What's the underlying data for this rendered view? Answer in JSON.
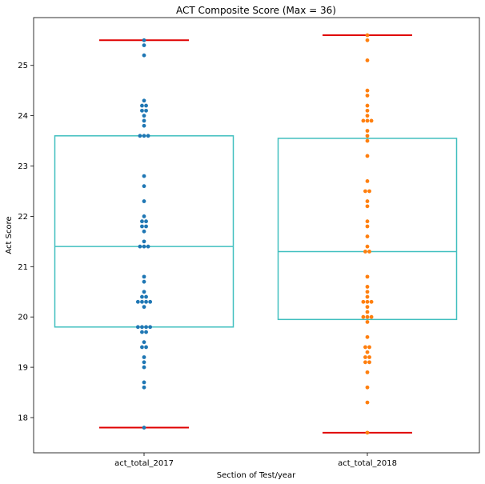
{
  "chart_data": {
    "type": "box-swarm",
    "title": "ACT Composite Score (Max = 36)",
    "xlabel": "Section of Test/year",
    "ylabel": "Act Score",
    "categories": [
      "act_total_2017",
      "act_total_2018"
    ],
    "ylim": [
      17.3,
      25.95
    ],
    "yticks": [
      18,
      19,
      20,
      21,
      22,
      23,
      24,
      25
    ],
    "grid": false,
    "colors": {
      "box": "#40bfbf",
      "whisker_cap": "#e00000",
      "act_total_2017": "#1f77b4",
      "act_total_2018": "#ff7f0e"
    },
    "boxes": [
      {
        "category": "act_total_2017",
        "whisker_low": 17.8,
        "q1": 19.8,
        "median": 21.4,
        "q3": 23.6,
        "whisker_high": 25.5
      },
      {
        "category": "act_total_2018",
        "whisker_low": 17.7,
        "q1": 19.95,
        "median": 21.3,
        "q3": 23.55,
        "whisker_high": 25.6
      }
    ],
    "series": [
      {
        "category": "act_total_2017",
        "values": [
          17.8,
          18.6,
          18.7,
          19.0,
          19.1,
          19.2,
          19.4,
          19.4,
          19.5,
          19.7,
          19.7,
          19.8,
          19.8,
          19.8,
          19.8,
          20.2,
          20.3,
          20.3,
          20.3,
          20.3,
          20.4,
          20.4,
          20.5,
          20.7,
          20.8,
          21.4,
          21.4,
          21.4,
          21.5,
          21.7,
          21.8,
          21.8,
          21.9,
          21.9,
          22.0,
          22.3,
          22.6,
          22.8,
          23.6,
          23.6,
          23.6,
          23.8,
          23.9,
          24.0,
          24.1,
          24.1,
          24.2,
          24.2,
          24.3,
          25.2,
          25.4,
          25.5
        ]
      },
      {
        "category": "act_total_2018",
        "values": [
          17.7,
          18.3,
          18.6,
          18.9,
          19.1,
          19.1,
          19.2,
          19.2,
          19.3,
          19.4,
          19.4,
          19.6,
          19.9,
          20.0,
          20.0,
          20.0,
          20.1,
          20.2,
          20.3,
          20.3,
          20.3,
          20.4,
          20.5,
          20.6,
          20.8,
          21.3,
          21.3,
          21.4,
          21.6,
          21.8,
          21.9,
          22.2,
          22.3,
          22.5,
          22.5,
          22.7,
          23.2,
          23.5,
          23.6,
          23.7,
          23.9,
          23.9,
          23.9,
          24.0,
          24.1,
          24.2,
          24.4,
          24.5,
          25.1,
          25.5,
          25.6
        ]
      }
    ]
  }
}
